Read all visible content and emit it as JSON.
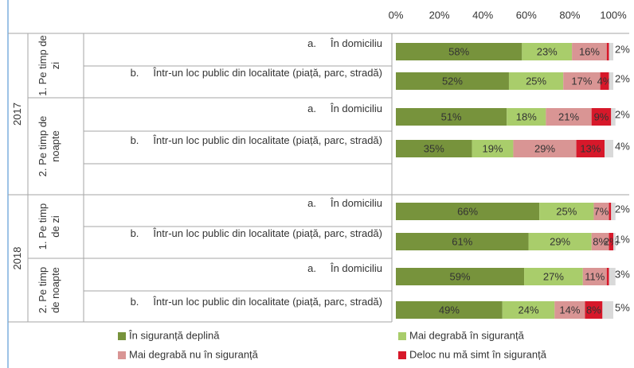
{
  "chart_data": {
    "type": "stacked-bar",
    "years": [
      {
        "label": "2017",
        "groups": [
          {
            "label": "1. Pe timp de zi",
            "rows": [
              {
                "letter": "a.",
                "text": "În domiciliu"
              },
              {
                "letter": "b.",
                "text": "Într-un loc public din localitate (piață, parc, stradă)"
              }
            ]
          },
          {
            "label": "2. Pe timp de noapte",
            "rows": [
              {
                "letter": "a.",
                "text": "În domiciliu"
              },
              {
                "letter": "b.",
                "text": "Într-un loc public din localitate (piață, parc, stradă)"
              }
            ]
          }
        ]
      },
      {
        "label": "2018",
        "groups": [
          {
            "label": "1. Pe timp de zi",
            "rows": [
              {
                "letter": "a.",
                "text": "În domiciliu"
              },
              {
                "letter": "b.",
                "text": "Într-un loc public din localitate (piață, parc, stradă)"
              }
            ]
          },
          {
            "label": "2. Pe timp de noapte",
            "rows": [
              {
                "letter": "a.",
                "text": "În domiciliu"
              },
              {
                "letter": "b.",
                "text": "Într-un loc public din localitate (piață, parc, stradă)"
              }
            ]
          }
        ]
      }
    ],
    "series": [
      {
        "name": "În siguranță deplină",
        "color": "#77933c",
        "values": [
          58,
          52,
          51,
          35,
          66,
          61,
          59,
          49
        ],
        "value_labels": [
          "58%",
          "52%",
          "51%",
          "35%",
          "66%",
          "61%",
          "59%",
          "49%"
        ]
      },
      {
        "name": "Mai degrabă în siguranță",
        "color": "#a9cd6b",
        "values": [
          23,
          25,
          18,
          19,
          25,
          29,
          27,
          24
        ],
        "value_labels": [
          "23%",
          "25%",
          "18%",
          "19%",
          "25%",
          "29%",
          "27%",
          "24%"
        ]
      },
      {
        "name": "Mai degrabă nu în siguranță",
        "color": "#d99594",
        "values": [
          16,
          17,
          21,
          29,
          7,
          8,
          11,
          14
        ],
        "value_labels": [
          "16%",
          "17%",
          "21%",
          "29%",
          "7%",
          "8%",
          "11%",
          "14%"
        ]
      },
      {
        "name": "Deloc nu mă simt în siguranță",
        "color": "#d7182a",
        "values": [
          1,
          4,
          9,
          13,
          1,
          2,
          1,
          8
        ],
        "value_labels": [
          null,
          "4%",
          "9%",
          "13%",
          null,
          "2%",
          null,
          "8%"
        ]
      },
      {
        "color": "#d9d9d9",
        "values": [
          2,
          2,
          2,
          4,
          2,
          1,
          3,
          5
        ],
        "value_labels": [
          "2%",
          "2%",
          "2%",
          "4%",
          "2%",
          "1%",
          "3%",
          "5%"
        ]
      }
    ],
    "xlim": [
      0,
      100
    ],
    "xticks": [
      {
        "value": 0,
        "label": "0%"
      },
      {
        "value": 20,
        "label": "20%"
      },
      {
        "value": 40,
        "label": "40%"
      },
      {
        "value": 60,
        "label": "60%"
      },
      {
        "value": 80,
        "label": "80%"
      },
      {
        "value": 100,
        "label": "100%"
      }
    ]
  }
}
